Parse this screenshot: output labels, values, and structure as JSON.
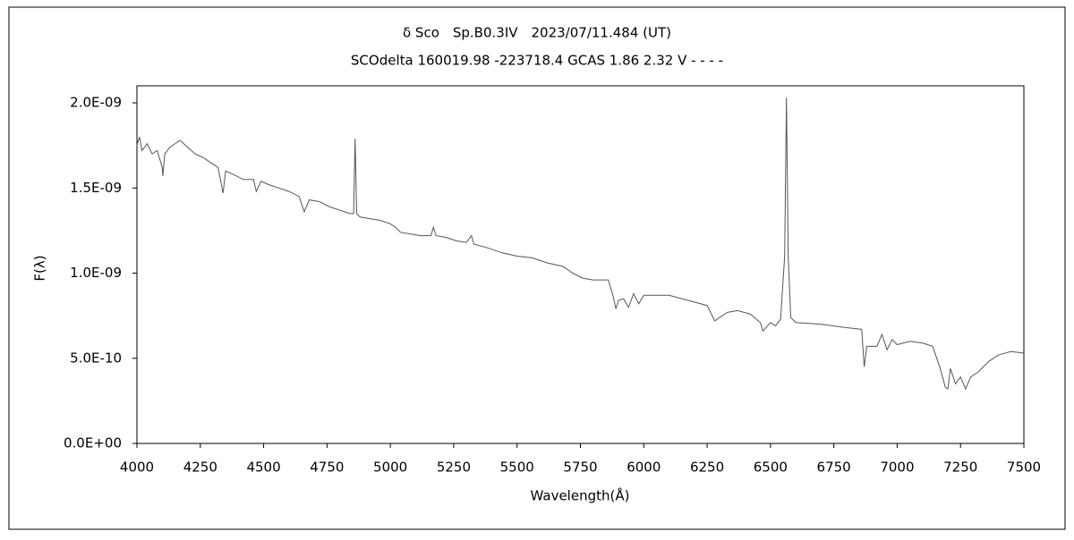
{
  "chart_data": {
    "type": "line",
    "title": "δ Sco　Sp.B0.3IV　2023/07/11.484 (UT)",
    "subtitle": "SCOdelta 160019.98 -223718.4 GCAS 1.86 2.32 V - - - -",
    "x_label": "Wavelength(Å)",
    "y_label": "F(λ)",
    "color": "#555555",
    "x": [
      4000,
      4010,
      4020,
      4040,
      4060,
      4080,
      4100,
      4102,
      4110,
      4130,
      4150,
      4170,
      4200,
      4230,
      4260,
      4290,
      4320,
      4340,
      4350,
      4380,
      4420,
      4460,
      4471,
      4490,
      4520,
      4560,
      4600,
      4640,
      4660,
      4680,
      4720,
      4760,
      4800,
      4840,
      4855,
      4861,
      4867,
      4880,
      4920,
      4960,
      5000,
      5020,
      5040,
      5080,
      5120,
      5160,
      5170,
      5180,
      5220,
      5260,
      5300,
      5320,
      5330,
      5380,
      5440,
      5500,
      5560,
      5620,
      5680,
      5720,
      5760,
      5800,
      5860,
      5880,
      5890,
      5900,
      5920,
      5940,
      5960,
      5980,
      6000,
      6050,
      6100,
      6150,
      6200,
      6250,
      6280,
      6300,
      6330,
      6370,
      6420,
      6460,
      6470,
      6500,
      6520,
      6540,
      6556,
      6563,
      6570,
      6580,
      6600,
      6700,
      6800,
      6860,
      6870,
      6880,
      6920,
      6940,
      6960,
      6980,
      7000,
      7050,
      7100,
      7140,
      7170,
      7190,
      7200,
      7210,
      7230,
      7250,
      7270,
      7290,
      7320,
      7360,
      7400,
      7450,
      7500
    ],
    "values": [
      1.75e-09,
      1.8e-09,
      1.72e-09,
      1.76e-09,
      1.7e-09,
      1.72e-09,
      1.62e-09,
      1.57e-09,
      1.7e-09,
      1.74e-09,
      1.76e-09,
      1.78e-09,
      1.74e-09,
      1.7e-09,
      1.68e-09,
      1.65e-09,
      1.62e-09,
      1.47e-09,
      1.6e-09,
      1.58e-09,
      1.55e-09,
      1.55e-09,
      1.48e-09,
      1.54e-09,
      1.52e-09,
      1.5e-09,
      1.48e-09,
      1.45e-09,
      1.36e-09,
      1.43e-09,
      1.42e-09,
      1.39e-09,
      1.37e-09,
      1.35e-09,
      1.35e-09,
      1.79e-09,
      1.35e-09,
      1.33e-09,
      1.32e-09,
      1.31e-09,
      1.29e-09,
      1.27e-09,
      1.24e-09,
      1.23e-09,
      1.22e-09,
      1.22e-09,
      1.27e-09,
      1.22e-09,
      1.21e-09,
      1.19e-09,
      1.18e-09,
      1.22e-09,
      1.17e-09,
      1.15e-09,
      1.12e-09,
      1.1e-09,
      1.09e-09,
      1.06e-09,
      1.04e-09,
      1e-09,
      9.7e-10,
      9.6e-10,
      9.6e-10,
      8.6e-10,
      7.9e-10,
      8.4e-10,
      8.5e-10,
      8e-10,
      8.8e-10,
      8.2e-10,
      8.7e-10,
      8.7e-10,
      8.7e-10,
      8.5e-10,
      8.3e-10,
      8.1e-10,
      7.2e-10,
      7.4e-10,
      7.7e-10,
      7.8e-10,
      7.6e-10,
      7.1e-10,
      6.6e-10,
      7.1e-10,
      6.9e-10,
      7.3e-10,
      1.1e-09,
      2.03e-09,
      1.1e-09,
      7.4e-10,
      7.1e-10,
      7e-10,
      6.8e-10,
      6.7e-10,
      4.5e-10,
      5.7e-10,
      5.7e-10,
      6.4e-10,
      5.5e-10,
      6.1e-10,
      5.8e-10,
      6e-10,
      5.9e-10,
      5.7e-10,
      4.4e-10,
      3.3e-10,
      3.2e-10,
      4.4e-10,
      3.5e-10,
      3.9e-10,
      3.2e-10,
      3.9e-10,
      4.2e-10,
      4.8e-10,
      5.2e-10,
      5.4e-10,
      5.3e-10
    ],
    "xlim": [
      4000,
      7500
    ],
    "xticks": [
      4000,
      4250,
      4500,
      4750,
      5000,
      5250,
      5500,
      5750,
      6000,
      6250,
      6500,
      6750,
      7000,
      7250,
      7500
    ],
    "ylim": [
      0,
      2.1e-09
    ],
    "yticks": [
      {
        "value": 0,
        "label": "0.0E+00"
      },
      {
        "value": 5e-10,
        "label": "5.0E-10"
      },
      {
        "value": 1e-09,
        "label": "1.0E-09"
      },
      {
        "value": 1.5e-09,
        "label": "1.5E-09"
      },
      {
        "value": 2e-09,
        "label": "2.0E-09"
      }
    ]
  }
}
